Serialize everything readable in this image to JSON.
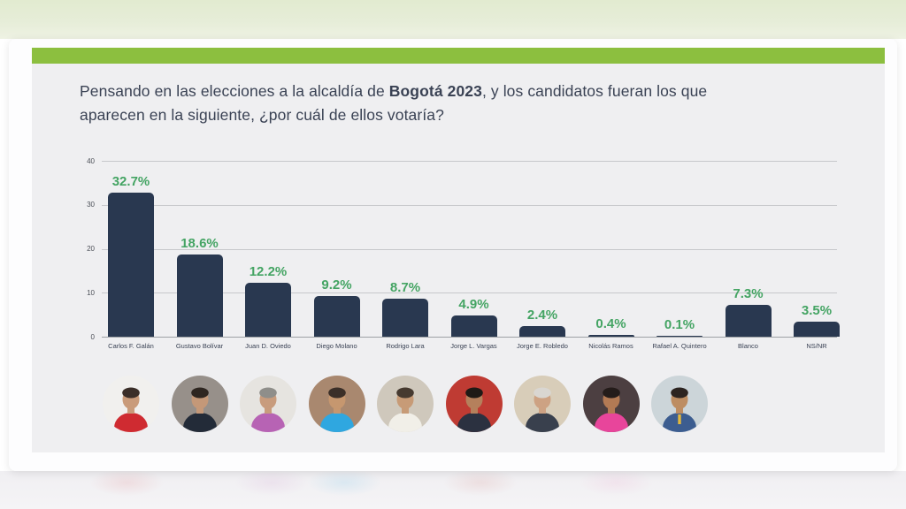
{
  "page": {
    "background_top_color": "#e4ecd4",
    "background_bottom_color": "#f4f3f5",
    "card_color": "#efeff1",
    "accent_bar_color": "#8cbf3f"
  },
  "question": {
    "part1": "Pensando en las elecciones a la alcaldía de ",
    "bold": "Bogotá 2023",
    "part2": ", y los candidatos fueran los que aparecen en la siguiente, ¿por cuál de ellos votaría?"
  },
  "chart_data": {
    "type": "bar",
    "title": "Pensando en las elecciones a la alcaldía de Bogotá 2023, y los candidatos fueran los que aparecen en la siguiente, ¿por cuál de ellos votaría?",
    "categories": [
      "Carlos F. Galán",
      "Gustavo Bolívar",
      "Juan D. Oviedo",
      "Diego Molano",
      "Rodrigo Lara",
      "Jorge L. Vargas",
      "Jorge E. Robledo",
      "Nicolás Ramos",
      "Rafael A. Quintero",
      "Blanco",
      "NS/NR"
    ],
    "values": [
      32.7,
      18.6,
      12.2,
      9.2,
      8.7,
      4.9,
      2.4,
      0.4,
      0.1,
      7.3,
      3.5
    ],
    "data_labels": [
      "32.7%",
      "18.6%",
      "12.2%",
      "9.2%",
      "8.7%",
      "4.9%",
      "2.4%",
      "0.4%",
      "0.1%",
      "7.3%",
      "3.5%"
    ],
    "xlabel": "",
    "ylabel": "",
    "ylim": [
      0,
      40
    ],
    "yticks": [
      40,
      30,
      20,
      10,
      0
    ],
    "grid": true,
    "legend": false,
    "bar_color": "#293850",
    "value_label_color": "#44a463"
  },
  "candidates": [
    {
      "name": "Carlos F. Galán",
      "photo": {
        "bg": "#f1f0ee",
        "body": "#cf2b31",
        "head": "#c99b7a",
        "hair": "#3a2e28",
        "accent": null
      }
    },
    {
      "name": "Gustavo Bolívar",
      "photo": {
        "bg": "#97908a",
        "body": "#232b38",
        "head": "#c49878",
        "hair": "#2e2620",
        "accent": null
      }
    },
    {
      "name": "Juan D. Oviedo",
      "photo": {
        "bg": "#e6e4e0",
        "body": "#b763b4",
        "head": "#c89c7d",
        "hair": "#8f8e8a",
        "accent": null
      }
    },
    {
      "name": "Diego Molano",
      "photo": {
        "bg": "#a9886f",
        "body": "#2fa7e0",
        "head": "#c6976f",
        "hair": "#3b2f28",
        "accent": null
      }
    },
    {
      "name": "Rodrigo Lara",
      "photo": {
        "bg": "#cfc8bc",
        "body": "#f1efe8",
        "head": "#c79b77",
        "hair": "#463a30",
        "accent": null
      }
    },
    {
      "name": "Jorge L. Vargas",
      "photo": {
        "bg": "#bf3b33",
        "body": "#2b3140",
        "head": "#b5805c",
        "hair": "#1f1a16",
        "accent": null
      }
    },
    {
      "name": "Jorge E. Robledo",
      "photo": {
        "bg": "#d8cdb9",
        "body": "#39404d",
        "head": "#cda283",
        "hair": "#d9d6d1",
        "accent": null
      }
    },
    {
      "name": "Nicolás Ramos",
      "photo": {
        "bg": "#4c3f41",
        "body": "#e8459b",
        "head": "#b37a54",
        "hair": "#241c1a",
        "accent": null
      }
    },
    {
      "name": "Rafael A. Quintero",
      "photo": {
        "bg": "#ccd5d9",
        "body": "#3c5d90",
        "head": "#bd8d62",
        "hair": "#2c2420",
        "accent": "#e3b93c"
      }
    }
  ]
}
